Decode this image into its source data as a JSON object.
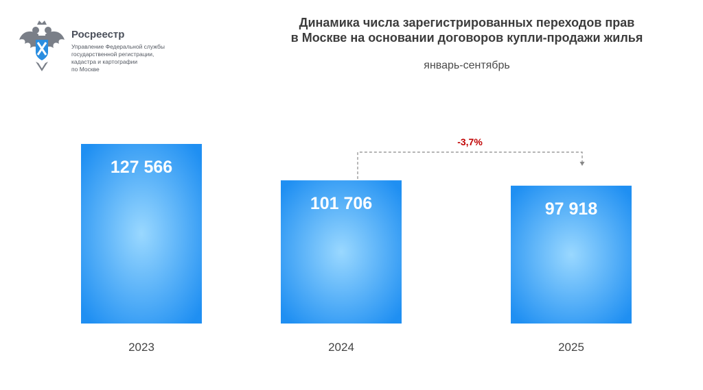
{
  "header": {
    "brand_name": "Росреестр",
    "brand_lines": [
      "Управление Федеральной службы",
      "государственной регистрации,",
      "кадастра и картографии",
      "по Москве"
    ]
  },
  "chart_data": {
    "type": "bar",
    "title_lines": [
      "Динамика числа зарегистрированных переходов прав",
      "в Москве на основании договоров купли-продажи жилья"
    ],
    "subtitle": "январь-сентябрь",
    "categories": [
      "2023",
      "2024",
      "2025"
    ],
    "values": [
      127566,
      101706,
      97918
    ],
    "value_labels": [
      "127 566",
      "101 706",
      "97 918"
    ],
    "annotation": {
      "text": "-3,7%",
      "from": "2024",
      "to": "2025"
    },
    "colors": {
      "bar_edge": "#1f8ff2",
      "bar_center": "#8fd3ff",
      "label": "#ffffff",
      "annotation": "#c00000",
      "connector": "#888888",
      "axis_text": "#444444"
    }
  }
}
